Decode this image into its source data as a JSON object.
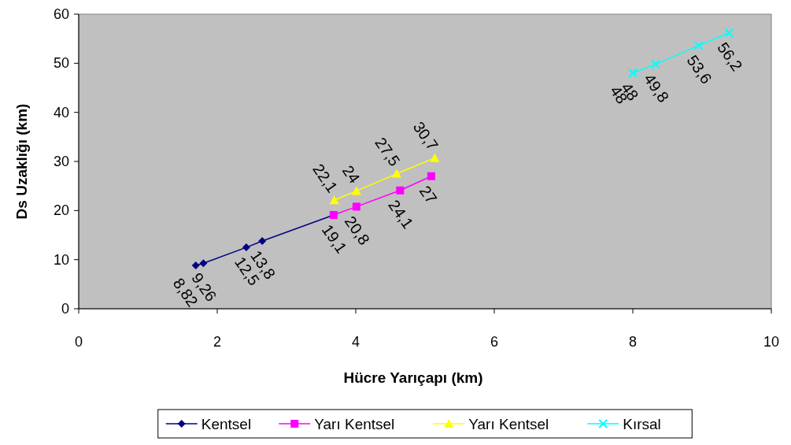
{
  "chart_data": {
    "type": "line",
    "xlabel": "Hücre Yarıçapı (km)",
    "ylabel": "Ds Uzaklığı (km)",
    "xlim": [
      0,
      10
    ],
    "xticks": [
      0,
      2,
      4,
      6,
      8,
      10
    ],
    "ylim": [
      0,
      60
    ],
    "yticks": [
      0,
      10,
      20,
      30,
      40,
      50,
      60
    ],
    "grid": false,
    "legend": "bottom",
    "series": [
      {
        "name": "Kentsel",
        "color": "#000080",
        "marker": "diamond",
        "x": [
          1.69,
          1.8,
          2.42,
          2.65,
          3.68
        ],
        "values": [
          8.82,
          9.26,
          12.5,
          13.8,
          19.1
        ],
        "value_labels": [
          "8,82",
          "9,26",
          "12,5",
          "13,8",
          null
        ]
      },
      {
        "name": "Yarı Kentsel",
        "color": "#ff00ff",
        "marker": "square",
        "x": [
          3.68,
          4.01,
          4.64,
          5.09
        ],
        "values": [
          19.1,
          20.8,
          24.1,
          27
        ],
        "value_labels": [
          "19,1",
          "20,8",
          "24,1",
          "27"
        ]
      },
      {
        "name": "Yarı Kentsel",
        "color": "#ffff00",
        "marker": "triangle",
        "x": [
          3.69,
          4.01,
          4.59,
          5.14
        ],
        "values": [
          22.1,
          24,
          27.5,
          30.7
        ],
        "value_labels": [
          "22,1",
          "24",
          "27,5",
          "30,7"
        ]
      },
      {
        "name": "Kırsal",
        "color": "#00ffff",
        "marker": "cross",
        "x": [
          8.0,
          8.0,
          8.33,
          8.95,
          9.39
        ],
        "values": [
          48,
          48,
          49.8,
          53.6,
          56.2
        ],
        "value_labels": [
          "48",
          "48",
          "49,8",
          "53,6",
          "56,2"
        ]
      }
    ]
  }
}
